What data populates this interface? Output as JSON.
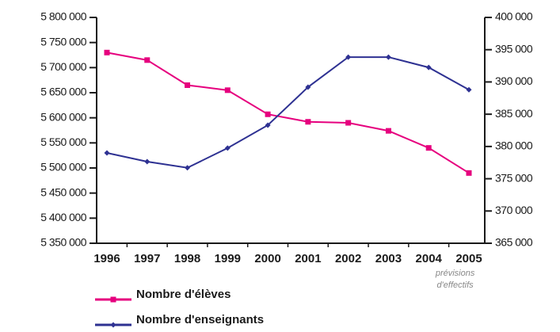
{
  "chart_data": {
    "type": "line",
    "categories": [
      "1996",
      "1997",
      "1998",
      "1999",
      "2000",
      "2001",
      "2002",
      "2003",
      "2004",
      "2005"
    ],
    "category_colors": [
      "#1a1a1a",
      "#1a1a1a",
      "#1a1a1a",
      "#1a1a1a",
      "#1a1a1a",
      "#1a1a1a",
      "#1a1a1a",
      "#1a1a1a",
      "#999999",
      "#999999"
    ],
    "annotation": [
      "prévisions",
      "d'effectifs"
    ],
    "series": [
      {
        "name": "Nombre d'élèves",
        "color": "#e6007e",
        "marker": "square",
        "values": [
          5730000,
          5715000,
          5665000,
          5655000,
          5607000,
          5592000,
          5590000,
          5574000,
          5540000,
          5490000
        ]
      },
      {
        "name": "Nombre d'enseignants",
        "color": "#2e3192",
        "marker": "diamond",
        "axis": "y2",
        "values": [
          379000,
          377650,
          376700,
          379750,
          383300,
          389200,
          393850,
          393850,
          392250,
          388800
        ]
      }
    ],
    "ylim": [
      5350000,
      5800000
    ],
    "yticks": [
      {
        "value": 5800000,
        "label": "5 800 000"
      },
      {
        "value": 5750000,
        "label": "5 750 000"
      },
      {
        "value": 5700000,
        "label": "5 700 000"
      },
      {
        "value": 5650000,
        "label": "5 650 000"
      },
      {
        "value": 5600000,
        "label": "5 600 000"
      },
      {
        "value": 5550000,
        "label": "5 550 000"
      },
      {
        "value": 5500000,
        "label": "5 500 000"
      },
      {
        "value": 5450000,
        "label": "5 450 000"
      },
      {
        "value": 5400000,
        "label": "5 400 000"
      },
      {
        "value": 5350000,
        "label": "5 350 000"
      }
    ],
    "y2lim": [
      365000,
      400000
    ],
    "y2ticks": [
      {
        "value": 400000,
        "label": "400 000"
      },
      {
        "value": 395000,
        "label": "395 000"
      },
      {
        "value": 390000,
        "label": "390 000"
      },
      {
        "value": 385000,
        "label": "385 000"
      },
      {
        "value": 380000,
        "label": "380 000"
      },
      {
        "value": 375000,
        "label": "375 000"
      },
      {
        "value": 370000,
        "label": "370 000"
      },
      {
        "value": 365000,
        "label": "365 000"
      }
    ],
    "grid": false
  }
}
